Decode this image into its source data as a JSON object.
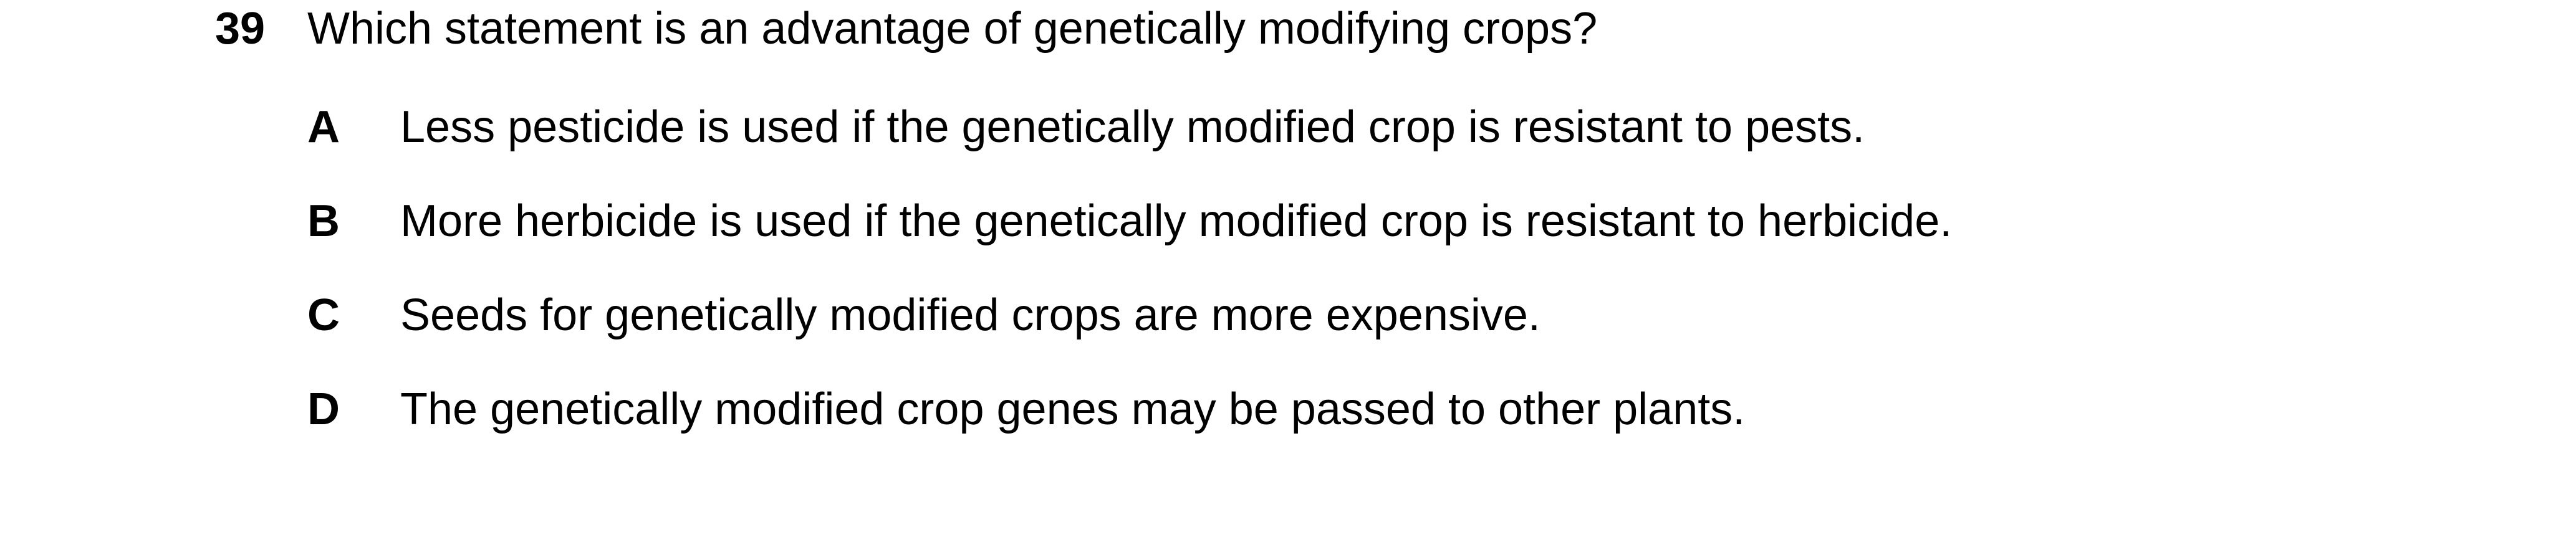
{
  "question": {
    "number": "39",
    "text": "Which statement is an advantage of genetically modifying crops?"
  },
  "options": [
    {
      "letter": "A",
      "text": "Less pesticide is used if the genetically modified crop is resistant to pests."
    },
    {
      "letter": "B",
      "text": "More herbicide is used if the genetically modified crop is resistant to herbicide."
    },
    {
      "letter": "C",
      "text": "Seeds for genetically modified crops are more expensive."
    },
    {
      "letter": "D",
      "text": "The genetically modified crop genes may be passed to other plants."
    }
  ]
}
